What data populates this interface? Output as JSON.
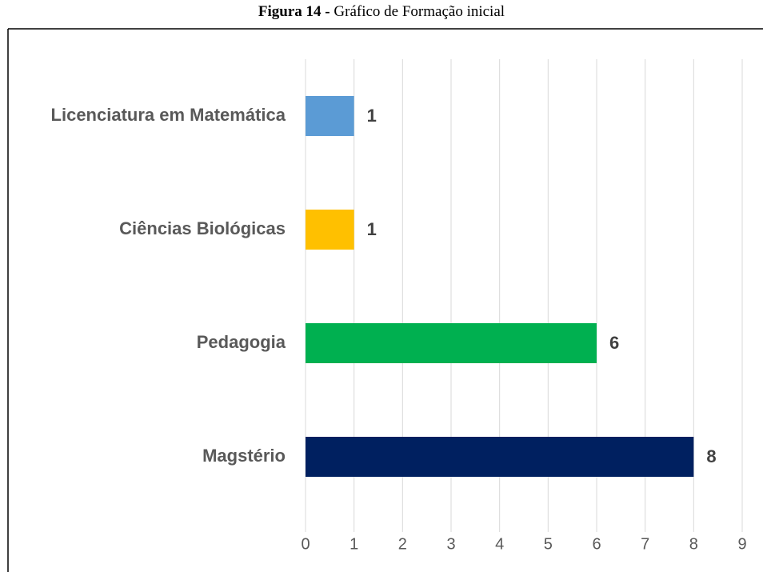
{
  "chart_data": {
    "type": "bar",
    "orientation": "horizontal",
    "caption_label": "Figura 14 -",
    "title": "Gráfico de Formação inicial",
    "categories": [
      "Licenciatura em Matemática",
      "Ciências Biológicas",
      "Pedagogia",
      "Magstério"
    ],
    "values": [
      1,
      1,
      6,
      8
    ],
    "colors": [
      "#5b9bd5",
      "#ffc000",
      "#00b050",
      "#002060"
    ],
    "xlim": [
      0,
      9
    ],
    "xticks": [
      0,
      1,
      2,
      3,
      4,
      5,
      6,
      7,
      8,
      9
    ],
    "grid": true
  }
}
